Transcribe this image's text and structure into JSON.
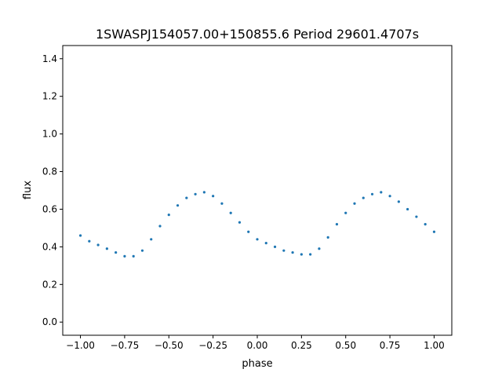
{
  "chart_data": {
    "type": "scatter",
    "title": "1SWASPJ154057.00+150855.6 Period 29601.4707s",
    "xlabel": "phase",
    "ylabel": "flux",
    "xlim": [
      -1.1,
      1.1
    ],
    "ylim": [
      -0.07,
      1.47
    ],
    "xticks": [
      -1.0,
      -0.75,
      -0.5,
      -0.25,
      0.0,
      0.25,
      0.5,
      0.75,
      1.0
    ],
    "xtick_labels": [
      "−1.00",
      "−0.75",
      "−0.50",
      "−0.25",
      "0.00",
      "0.25",
      "0.50",
      "0.75",
      "1.00"
    ],
    "yticks": [
      0.0,
      0.2,
      0.4,
      0.6,
      0.8,
      1.0,
      1.2,
      1.4
    ],
    "ytick_labels": [
      "0.0",
      "0.2",
      "0.4",
      "0.6",
      "0.8",
      "1.0",
      "1.2",
      "1.4"
    ],
    "grid": false,
    "legend": "none",
    "marker_color": "#1f77b4",
    "series": [
      {
        "x": [
          -1.0,
          -0.95,
          -0.9,
          -0.85,
          -0.8,
          -0.75,
          -0.7,
          -0.65,
          -0.6,
          -0.55,
          -0.5,
          -0.45,
          -0.4,
          -0.35,
          -0.3,
          -0.25,
          -0.2,
          -0.15,
          -0.1,
          -0.05,
          0.0,
          0.05,
          0.1,
          0.15,
          0.2,
          0.25,
          0.3,
          0.35,
          0.4,
          0.45,
          0.5,
          0.55,
          0.6,
          0.65,
          0.7,
          0.75,
          0.8,
          0.85,
          0.9,
          0.95,
          1.0
        ],
        "y": [
          0.46,
          0.43,
          0.41,
          0.39,
          0.37,
          0.35,
          0.35,
          0.38,
          0.44,
          0.51,
          0.57,
          0.62,
          0.66,
          0.68,
          0.69,
          0.67,
          0.63,
          0.58,
          0.53,
          0.48,
          0.44,
          0.42,
          0.4,
          0.38,
          0.37,
          0.36,
          0.36,
          0.39,
          0.45,
          0.52,
          0.58,
          0.63,
          0.66,
          0.68,
          0.69,
          0.67,
          0.64,
          0.6,
          0.56,
          0.52,
          0.48
        ]
      }
    ]
  }
}
